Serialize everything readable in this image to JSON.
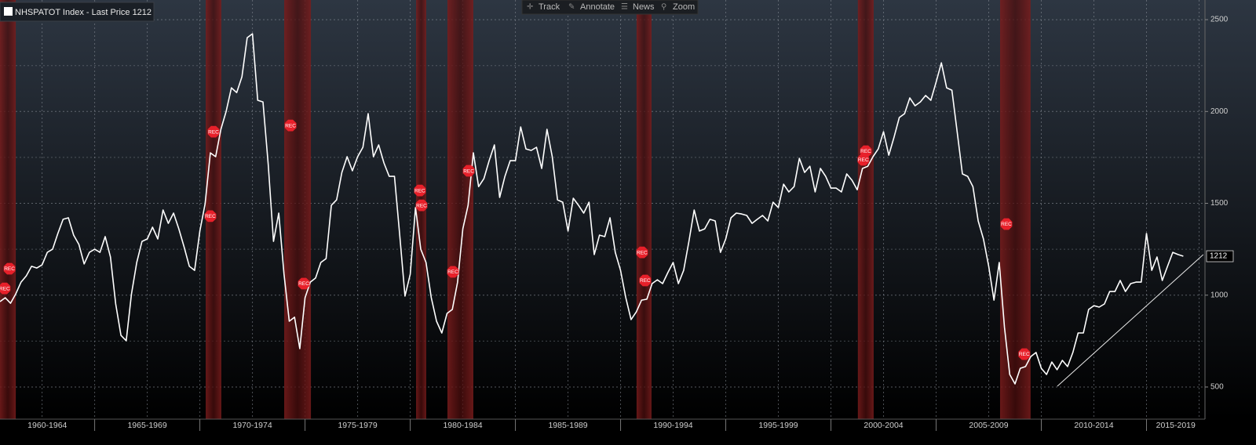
{
  "chart_data": {
    "type": "line",
    "toolbar": [
      "Track",
      "Annotate",
      "News",
      "Zoom"
    ],
    "series": [
      {
        "name": "NHSPATOT Index - Last Price 1212",
        "color": "#ffffff",
        "x": [
          1960.5,
          1960.75,
          1961,
          1961.25,
          1961.5,
          1961.75,
          1962,
          1962.25,
          1962.5,
          1962.75,
          1963,
          1963.25,
          1963.5,
          1963.75,
          1964,
          1964.25,
          1964.5,
          1964.75,
          1965,
          1965.25,
          1965.5,
          1965.75,
          1966,
          1966.25,
          1966.5,
          1966.75,
          1967,
          1967.25,
          1967.5,
          1967.75,
          1968,
          1968.25,
          1968.5,
          1968.75,
          1969,
          1969.25,
          1969.5,
          1969.75,
          1970,
          1970.25,
          1970.5,
          1970.75,
          1971,
          1971.25,
          1971.5,
          1971.75,
          1972,
          1972.25,
          1972.5,
          1972.75,
          1973,
          1973.25,
          1973.5,
          1973.75,
          1974,
          1974.25,
          1974.5,
          1974.75,
          1975,
          1975.25,
          1975.5,
          1975.75,
          1976,
          1976.25,
          1976.5,
          1976.75,
          1977,
          1977.25,
          1977.5,
          1977.75,
          1978,
          1978.25,
          1978.5,
          1978.75,
          1979,
          1979.25,
          1979.5,
          1979.75,
          1980,
          1980.25,
          1980.5,
          1980.75,
          1981,
          1981.25,
          1981.5,
          1981.75,
          1982,
          1982.25,
          1982.5,
          1982.75,
          1983,
          1983.25,
          1983.5,
          1983.75,
          1984,
          1984.25,
          1984.5,
          1984.75,
          1985,
          1985.25,
          1985.5,
          1985.75,
          1986,
          1986.25,
          1986.5,
          1986.75,
          1987,
          1987.25,
          1987.5,
          1987.75,
          1988,
          1988.25,
          1988.5,
          1988.75,
          1989,
          1989.25,
          1989.5,
          1989.75,
          1990,
          1990.25,
          1990.5,
          1990.75,
          1991,
          1991.25,
          1991.5,
          1991.75,
          1992,
          1992.25,
          1992.5,
          1992.75,
          1993,
          1993.25,
          1993.5,
          1993.75,
          1994,
          1994.25,
          1994.5,
          1994.75,
          1995,
          1995.25,
          1995.5,
          1995.75,
          1996,
          1996.25,
          1996.5,
          1996.75,
          1997,
          1997.25,
          1997.5,
          1997.75,
          1998,
          1998.25,
          1998.5,
          1998.75,
          1999,
          1999.25,
          1999.5,
          1999.75,
          2000,
          2000.25,
          2000.5,
          2000.75,
          2001,
          2001.25,
          2001.5,
          2001.75,
          2002,
          2002.25,
          2002.5,
          2002.75,
          2003,
          2003.25,
          2003.5,
          2003.75,
          2004,
          2004.25,
          2004.5,
          2004.75,
          2005,
          2005.25,
          2005.5,
          2005.75,
          2006,
          2006.25,
          2006.5,
          2006.75,
          2007,
          2007.25,
          2007.5,
          2007.75,
          2008,
          2008.25,
          2008.5,
          2008.75,
          2009,
          2009.25,
          2009.5,
          2009.75,
          2010,
          2010.25,
          2010.5,
          2010.75,
          2011,
          2011.25,
          2011.5,
          2011.75,
          2012,
          2012.25,
          2012.5,
          2012.75,
          2013,
          2013.25,
          2013.5,
          2013.75,
          2014,
          2014.25,
          2014.5,
          2014.75,
          2015,
          2015.25,
          2015.5,
          2015.75,
          2016,
          2016.25,
          2016.5,
          2016.75
        ],
        "values": [
          965,
          986,
          956,
          1007,
          1071,
          1105,
          1157,
          1148,
          1165,
          1233,
          1250,
          1336,
          1413,
          1421,
          1327,
          1276,
          1170,
          1233,
          1250,
          1233,
          1319,
          1208,
          952,
          781,
          752,
          1007,
          1178,
          1293,
          1306,
          1370,
          1306,
          1464,
          1391,
          1447,
          1361,
          1263,
          1157,
          1135,
          1349,
          1498,
          1775,
          1754,
          1903,
          2001,
          2129,
          2103,
          2189,
          2402,
          2423,
          2061,
          2052,
          1711,
          1293,
          1447,
          1114,
          858,
          880,
          709,
          986,
          1071,
          1093,
          1178,
          1199,
          1489,
          1519,
          1668,
          1754,
          1677,
          1754,
          1805,
          1988,
          1754,
          1818,
          1720,
          1647,
          1647,
          1327,
          995,
          1114,
          1477,
          1250,
          1178,
          986,
          858,
          794,
          901,
          922,
          1071,
          1361,
          1489,
          1775,
          1591,
          1634,
          1732,
          1818,
          1532,
          1647,
          1732,
          1732,
          1916,
          1796,
          1788,
          1805,
          1690,
          1903,
          1754,
          1519,
          1506,
          1349,
          1528,
          1489,
          1447,
          1506,
          1221,
          1327,
          1319,
          1421,
          1233,
          1135,
          986,
          867,
          909,
          973,
          978,
          1063,
          1084,
          1063,
          1123,
          1178,
          1063,
          1135,
          1293,
          1464,
          1349,
          1361,
          1413,
          1404,
          1233,
          1306,
          1421,
          1447,
          1442,
          1434,
          1391,
          1413,
          1434,
          1404,
          1506,
          1477,
          1604,
          1562,
          1591,
          1745,
          1668,
          1702,
          1562,
          1690,
          1647,
          1583,
          1583,
          1562,
          1660,
          1626,
          1574,
          1690,
          1702,
          1754,
          1796,
          1890,
          1762,
          1860,
          1967,
          1988,
          2074,
          2031,
          2052,
          2087,
          2061,
          2160,
          2265,
          2129,
          2116,
          1890,
          1660,
          1647,
          1591,
          1404,
          1306,
          1157,
          973,
          1178,
          824,
          568,
          517,
          602,
          611,
          666,
          688,
          602,
          568,
          636,
          594,
          645,
          611,
          688,
          794,
          794,
          922,
          943,
          935,
          952,
          1020,
          1020,
          1080,
          1020,
          1063,
          1071,
          1071,
          1336,
          1135,
          1208,
          1080,
          1157,
          1233,
          1221,
          1212
        ]
      }
    ],
    "recessions": [
      {
        "from": 1960.5,
        "to": 1961.25
      },
      {
        "from": 1970.28,
        "to": 1971.02
      },
      {
        "from": 1974.01,
        "to": 1975.28
      },
      {
        "from": 1980.28,
        "to": 1980.76
      },
      {
        "from": 1981.77,
        "to": 1983.0
      },
      {
        "from": 1990.76,
        "to": 1991.47
      },
      {
        "from": 2001.28,
        "to": 2002.03
      },
      {
        "from": 2008.04,
        "to": 2009.49
      }
    ],
    "annotations": [
      {
        "text": "REC",
        "x": 1960.95,
        "y": 1144
      },
      {
        "text": "REC",
        "x": 1960.72,
        "y": 1037
      },
      {
        "text": "REC",
        "x": 1970.65,
        "y": 1890
      },
      {
        "text": "REC",
        "x": 1970.5,
        "y": 1430
      },
      {
        "text": "REC",
        "x": 1974.31,
        "y": 1924
      },
      {
        "text": "REC",
        "x": 1974.94,
        "y": 1063
      },
      {
        "text": "REC",
        "x": 1980.46,
        "y": 1570
      },
      {
        "text": "REC",
        "x": 1980.54,
        "y": 1489
      },
      {
        "text": "REC",
        "x": 1982.78,
        "y": 1677
      },
      {
        "text": "REC",
        "x": 1982.03,
        "y": 1127
      },
      {
        "text": "REC",
        "x": 1991.02,
        "y": 1233
      },
      {
        "text": "REC",
        "x": 1991.17,
        "y": 1080
      },
      {
        "text": "REC",
        "x": 2001.66,
        "y": 1784
      },
      {
        "text": "REC",
        "x": 2001.54,
        "y": 1737
      },
      {
        "text": "REC",
        "x": 2008.34,
        "y": 1387
      },
      {
        "text": "REC",
        "x": 2009.19,
        "y": 679
      }
    ],
    "trendline": {
      "x": [
        2010.76,
        2017.7
      ],
      "values": [
        504,
        1221
      ]
    },
    "x_groups": [
      {
        "label": "1960-1964",
        "from": 1960,
        "to": 1964
      },
      {
        "label": "1965-1969",
        "from": 1965,
        "to": 1969
      },
      {
        "label": "1970-1974",
        "from": 1970,
        "to": 1974
      },
      {
        "label": "1975-1979",
        "from": 1975,
        "to": 1979
      },
      {
        "label": "1980-1984",
        "from": 1980,
        "to": 1984
      },
      {
        "label": "1985-1989",
        "from": 1985,
        "to": 1989
      },
      {
        "label": "1990-1994",
        "from": 1990,
        "to": 1994
      },
      {
        "label": "1995-1999",
        "from": 1995,
        "to": 1999
      },
      {
        "label": "2000-2004",
        "from": 2000,
        "to": 2004
      },
      {
        "label": "2005-2009",
        "from": 2005,
        "to": 2009
      },
      {
        "label": "2010-2014",
        "from": 2010,
        "to": 2014
      },
      {
        "label": "2015-2019",
        "from": 2015,
        "to": 2019
      }
    ],
    "xlim": [
      1960.5,
      2017.78
    ],
    "xticks": [
      1962.5,
      1965,
      1967.5,
      1970,
      1972.5,
      1975,
      1977.5,
      1980,
      1982.5,
      1985,
      1987.5,
      1990,
      1992.5,
      1995,
      1997.5,
      2000,
      2002.5,
      2005,
      2007.5,
      2010,
      2012.5,
      2015,
      2017.5
    ],
    "ylim": [
      325,
      2607
    ],
    "yticks": [
      500,
      1000,
      1500,
      2000,
      2500
    ],
    "minor_yticks": [
      750,
      1250,
      1750,
      2250
    ],
    "grid": true
  }
}
